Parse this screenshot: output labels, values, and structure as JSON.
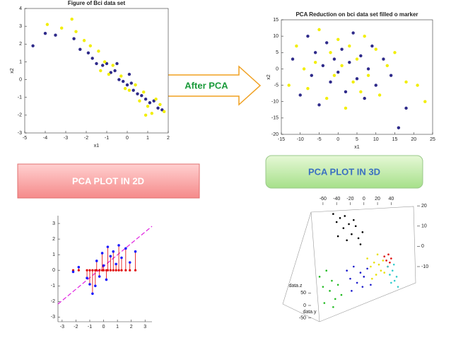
{
  "labels": {
    "arrow": "After PCA",
    "box_2d": "PCA PLOT IN 2D",
    "box_3d": "PCA PLOT IN 3D"
  },
  "chart_data": [
    {
      "type": "scatter",
      "title": "Figure of Bci data set",
      "x_label": "x1",
      "y_label": "x2",
      "xlim": [
        -5,
        2
      ],
      "ylim": [
        -3,
        4
      ],
      "xticks": [
        -5,
        -4,
        -3,
        -2,
        -1,
        0,
        1,
        2
      ],
      "yticks": [
        -3,
        -2,
        -1,
        0,
        1,
        2,
        3,
        4
      ],
      "series": [
        {
          "color": "#2e2a8a",
          "x": [
            -4.6,
            -4.0,
            -3.5,
            -2.6,
            -2.3,
            -1.9,
            -1.7,
            -1.5,
            -1.2,
            -1.0,
            -0.8,
            -0.6,
            -0.4,
            -0.2,
            0.0,
            0.2,
            0.3,
            0.5,
            0.7,
            0.9,
            1.1,
            1.3,
            1.5,
            1.7,
            -0.5,
            0.1
          ],
          "values": [
            1.9,
            2.6,
            2.5,
            2.3,
            1.7,
            1.5,
            1.2,
            0.9,
            0.8,
            0.9,
            0.4,
            0.5,
            0.0,
            -0.1,
            -0.3,
            -0.2,
            -0.6,
            -0.8,
            -0.9,
            -1.1,
            -1.3,
            -1.2,
            -1.6,
            -1.7,
            0.9,
            0.3
          ]
        },
        {
          "color": "#f2ee00",
          "x": [
            -3.9,
            -3.2,
            -2.7,
            -2.5,
            -2.1,
            -1.8,
            -1.4,
            -1.1,
            -0.9,
            -0.7,
            -0.3,
            -0.1,
            0.1,
            0.4,
            0.6,
            0.8,
            1.0,
            1.2,
            1.4,
            1.6,
            1.8,
            0.9,
            -1.3
          ],
          "values": [
            3.1,
            2.9,
            3.4,
            2.7,
            2.2,
            1.9,
            1.6,
            1.0,
            0.3,
            0.8,
            0.2,
            -0.5,
            -0.6,
            -0.3,
            -1.2,
            -0.7,
            -1.5,
            -1.9,
            -1.1,
            -1.4,
            -1.8,
            -2.0,
            0.5
          ]
        }
      ]
    },
    {
      "type": "scatter",
      "title": "PCA Reduction on bci data set filled o marker",
      "x_label": "x1",
      "y_label": "x2",
      "xlim": [
        -15,
        25
      ],
      "ylim": [
        -20,
        15
      ],
      "xticks": [
        -15,
        -10,
        -5,
        0,
        5,
        10,
        15,
        20,
        25
      ],
      "yticks": [
        -20,
        -15,
        -10,
        -5,
        0,
        5,
        10,
        15
      ],
      "series": [
        {
          "color": "#2e2a8a",
          "x": [
            -12,
            -10,
            -8,
            -7,
            -6,
            -5,
            -4,
            -3,
            -2,
            -1,
            0,
            1,
            2,
            3,
            4,
            5,
            6,
            7,
            8,
            9,
            10,
            12,
            14,
            16,
            18
          ],
          "values": [
            3,
            -8,
            10,
            -2,
            5,
            -11,
            1,
            8,
            -4,
            3,
            -1,
            6,
            -7,
            2,
            11,
            -3,
            4,
            -9,
            0,
            7,
            -5,
            3,
            -2,
            -18,
            -12
          ]
        },
        {
          "color": "#f2ee00",
          "x": [
            -13,
            -11,
            -9,
            -8,
            -6,
            -5,
            -3,
            -2,
            -1,
            0,
            1,
            2,
            3,
            4,
            5,
            6,
            7,
            8,
            10,
            11,
            13,
            15,
            18,
            21,
            23
          ],
          "values": [
            -5,
            7,
            0,
            -6,
            2,
            12,
            -9,
            5,
            -2,
            9,
            1,
            -12,
            7,
            -4,
            3,
            -7,
            10,
            -2,
            6,
            -8,
            1,
            5,
            -4,
            -5,
            -10
          ]
        }
      ]
    },
    {
      "type": "projection",
      "xlim": [
        -3.3,
        3.5
      ],
      "ylim": [
        -3.3,
        3.5
      ],
      "xticks": [
        -3,
        -2,
        -1,
        0,
        1,
        2,
        3
      ],
      "yticks": [
        -3,
        -2,
        -1,
        0,
        1,
        2,
        3
      ],
      "series": [
        {
          "color": "#1a1aff",
          "stem_color": "#e00000",
          "x": [
            -2.2,
            -1.8,
            -1.2,
            -1.0,
            -0.8,
            -0.6,
            -0.5,
            -0.3,
            -0.1,
            0.0,
            0.2,
            0.3,
            0.5,
            0.7,
            0.9,
            1.1,
            1.3,
            1.6,
            1.9,
            2.3
          ],
          "values": [
            -0.1,
            0.2,
            -0.5,
            -0.9,
            -1.5,
            -1.0,
            0.6,
            -0.4,
            1.1,
            0.3,
            -0.6,
            1.5,
            0.9,
            1.2,
            0.4,
            1.6,
            0.8,
            1.4,
            0.5,
            1.2
          ]
        }
      ]
    },
    {
      "type": "scatter3d",
      "z_label": "data.z",
      "y_label": "data.y",
      "xlim": [
        -119,
        78
      ],
      "xticks": [
        -60,
        -40,
        -20,
        0,
        20,
        40
      ],
      "y2lim": [
        -39,
        20.4
      ],
      "y2ticks": [
        20,
        10,
        0,
        -10
      ],
      "zlim": [
        -94,
        91
      ],
      "zticks": [
        50,
        0,
        -50
      ],
      "series": [
        {
          "color": "#000000",
          "x": [
            -45,
            -40,
            -35,
            -30,
            -28,
            -22,
            -18,
            -12,
            -8,
            -2,
            -38,
            -25,
            -15,
            -5
          ],
          "values": [
            16,
            12,
            14,
            9,
            15,
            11,
            6,
            10,
            4,
            7,
            5,
            3,
            13,
            1
          ]
        },
        {
          "color": "#22bb22",
          "x": [
            -65,
            -60,
            -55,
            -50,
            -47,
            -42,
            -38,
            -33,
            -58,
            -45
          ],
          "values": [
            -15,
            -20,
            -12,
            -22,
            -17,
            -26,
            -19,
            -24,
            -28,
            -30
          ]
        },
        {
          "color": "#1a1acc",
          "x": [
            -25,
            -20,
            -15,
            -10,
            -5,
            0,
            5,
            10,
            -18,
            -2
          ],
          "values": [
            -12,
            -16,
            -10,
            -18,
            -13,
            -15,
            -11,
            -19,
            -22,
            -20
          ]
        },
        {
          "color": "#e8e000",
          "x": [
            5,
            10,
            15,
            18,
            22,
            25,
            28,
            12,
            20,
            30
          ],
          "values": [
            -6,
            -10,
            -8,
            -14,
            -9,
            -12,
            -7,
            -16,
            -4,
            -13
          ]
        },
        {
          "color": "#dd0000",
          "x": [
            30,
            33,
            36,
            38,
            40,
            35
          ],
          "values": [
            -5,
            -7,
            -4,
            -8,
            -6,
            -10
          ]
        },
        {
          "color": "#33cccc",
          "x": [
            35,
            38,
            42,
            45,
            48,
            50,
            44,
            40
          ],
          "values": [
            -10,
            -14,
            -12,
            -17,
            -15,
            -20,
            -9,
            -18
          ]
        }
      ]
    }
  ]
}
